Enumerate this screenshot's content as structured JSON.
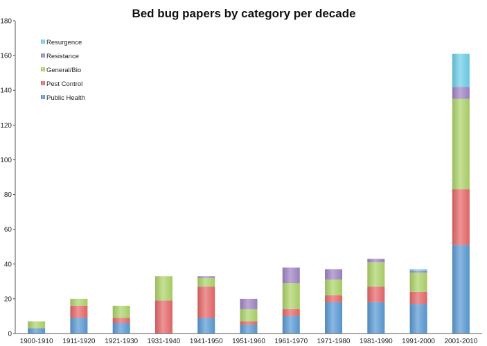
{
  "chart_data": {
    "type": "bar",
    "stacked": true,
    "title": "Bed bug papers by category per decade",
    "xlabel": "",
    "ylabel": "",
    "ylim": [
      0,
      180
    ],
    "yticks": [
      0,
      20,
      40,
      60,
      80,
      100,
      120,
      140,
      160,
      180
    ],
    "grid": false,
    "legend_position": "top-left",
    "categories": [
      "1900-1910",
      "1911-1920",
      "1921-1930",
      "1931-1940",
      "1941-1950",
      "1951-1960",
      "1961-1970",
      "1971-1980",
      "1981-1990",
      "1991-2000",
      "2001-2010"
    ],
    "series": [
      {
        "name": "Public Health",
        "color": "#5b9bd5",
        "values": [
          3,
          9,
          6,
          0,
          9,
          5,
          10,
          18,
          18,
          17,
          51
        ]
      },
      {
        "name": "Pest Control",
        "color": "#e8696a",
        "values": [
          0,
          7,
          3,
          19,
          18,
          2,
          4,
          4,
          9,
          7,
          32
        ]
      },
      {
        "name": "General/Bio",
        "color": "#aed46a",
        "values": [
          4,
          4,
          7,
          14,
          5,
          7,
          15,
          9,
          14,
          11,
          52
        ]
      },
      {
        "name": "Resistance",
        "color": "#a085c6",
        "values": [
          0,
          0,
          0,
          0,
          1,
          6,
          9,
          6,
          2,
          1,
          7
        ]
      },
      {
        "name": "Resurgence",
        "color": "#6fd0e8",
        "values": [
          0,
          0,
          0,
          0,
          0,
          0,
          0,
          0,
          0,
          1,
          19
        ]
      }
    ]
  }
}
